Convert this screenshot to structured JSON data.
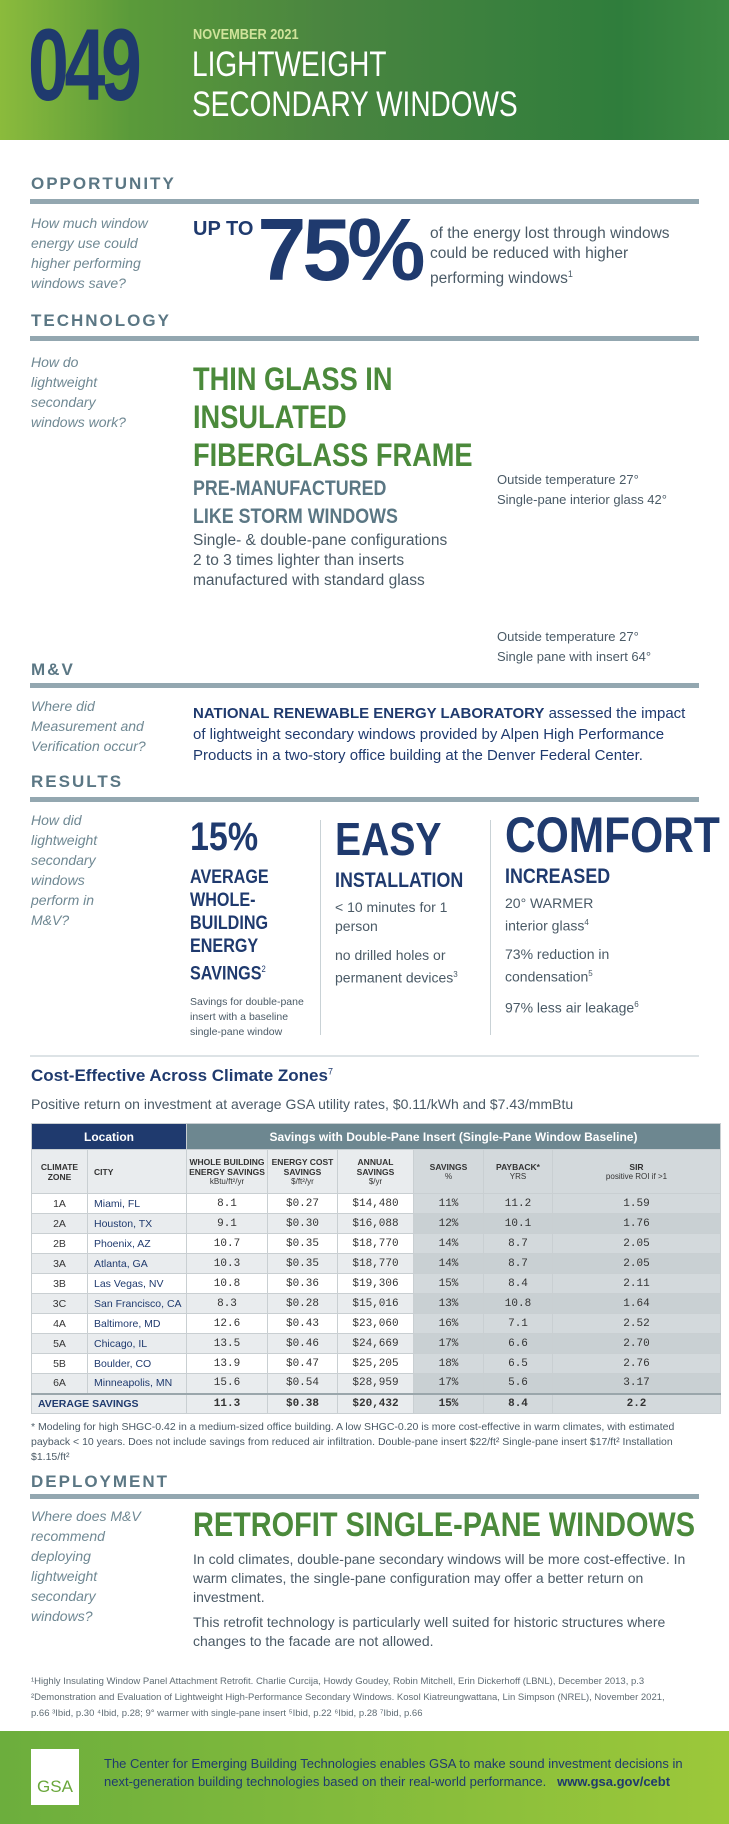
{
  "header": {
    "number": "049",
    "date": "NOVEMBER 2021",
    "title_line1": "LIGHTWEIGHT",
    "title_line2": "SECONDARY WINDOWS"
  },
  "opportunity": {
    "heading": "OPPORTUNITY",
    "question": "How much window energy use could higher performing windows save?",
    "prefix": "UP TO",
    "value": "75%",
    "text": "of the energy lost through windows could be reduced with higher performing windows",
    "ref": "1"
  },
  "technology": {
    "heading": "TECHNOLOGY",
    "question": "How do lightweight secondary windows work?",
    "title_lines": [
      "THIN GLASS IN",
      "INSULATED",
      "FIBERGLASS FRAME"
    ],
    "subtitle_lines": [
      "PRE-MANUFACTURED",
      "LIKE STORM WINDOWS"
    ],
    "desc_lines": [
      "Single- & double-pane configurations",
      "2 to 3 times lighter than inserts",
      "manufactured with standard glass"
    ],
    "images": [
      {
        "caption1": "Outside temperature 27°",
        "caption2": "Single-pane interior glass 42°"
      },
      {
        "caption1": "Outside temperature 27°",
        "caption2": "Single pane with insert 64°"
      }
    ]
  },
  "mv": {
    "heading": "M&V",
    "question": "Where did Measurement and Verification occur?",
    "lead": "NATIONAL RENEWABLE ENERGY LABORATORY",
    "text": " assessed the impact of lightweight secondary windows provided by Alpen High Performance Products in a two-story office building at the Denver Federal Center."
  },
  "results": {
    "heading": "RESULTS",
    "question": "How did lightweight secondary windows perform in M&V?",
    "col1": {
      "big": "15%",
      "label_lines": [
        "AVERAGE",
        "WHOLE-",
        "BUILDING",
        "ENERGY",
        "SAVINGS"
      ],
      "ref": "2",
      "note": "Savings for double-pane insert with a baseline single-pane window"
    },
    "col2": {
      "big": "EASY",
      "label": "INSTALLATION",
      "line1": "< 10 minutes for 1 person",
      "line2": "no drilled holes or permanent devices",
      "ref2": "3"
    },
    "col3": {
      "big": "COMFORT",
      "label": "INCREASED",
      "line1": "20° WARMER interior glass",
      "ref1": "4",
      "line2": "73% reduction in condensation",
      "ref2": "5",
      "line3": "97% less air leakage",
      "ref3": "6"
    }
  },
  "cost": {
    "title": "Cost-Effective Across Climate Zones",
    "ref": "7",
    "subtitle": "Positive return on investment at average GSA utility rates, $0.11/kWh and $7.43/mmBtu"
  },
  "table": {
    "group1": "Location",
    "group2": "Savings with Double-Pane Insert (Single-Pane Window Baseline)",
    "headers": [
      {
        "l1": "CLIMATE ZONE",
        "l2": ""
      },
      {
        "l1": "CITY",
        "l2": ""
      },
      {
        "l1": "WHOLE BUILDING ENERGY SAVINGS",
        "l2": "kBtu/ft²/yr"
      },
      {
        "l1": "ENERGY COST SAVINGS",
        "l2": "$/ft²/yr"
      },
      {
        "l1": "ANNUAL SAVINGS",
        "l2": "$/yr"
      },
      {
        "l1": "SAVINGS",
        "l2": "%"
      },
      {
        "l1": "PAYBACK*",
        "l2": "YRS"
      },
      {
        "l1": "SIR",
        "l2": "positive ROI if >1"
      }
    ],
    "rows": [
      [
        "1A",
        "Miami, FL",
        "8.1",
        "$0.27",
        "$14,480",
        "11%",
        "11.2",
        "1.59"
      ],
      [
        "2A",
        "Houston, TX",
        "9.1",
        "$0.30",
        "$16,088",
        "12%",
        "10.1",
        "1.76"
      ],
      [
        "2B",
        "Phoenix, AZ",
        "10.7",
        "$0.35",
        "$18,770",
        "14%",
        "8.7",
        "2.05"
      ],
      [
        "3A",
        "Atlanta, GA",
        "10.3",
        "$0.35",
        "$18,770",
        "14%",
        "8.7",
        "2.05"
      ],
      [
        "3B",
        "Las Vegas, NV",
        "10.8",
        "$0.36",
        "$19,306",
        "15%",
        "8.4",
        "2.11"
      ],
      [
        "3C",
        "San Francisco, CA",
        "8.3",
        "$0.28",
        "$15,016",
        "13%",
        "10.8",
        "1.64"
      ],
      [
        "4A",
        "Baltimore, MD",
        "12.6",
        "$0.43",
        "$23,060",
        "16%",
        "7.1",
        "2.52"
      ],
      [
        "5A",
        "Chicago, IL",
        "13.5",
        "$0.46",
        "$24,669",
        "17%",
        "6.6",
        "2.70"
      ],
      [
        "5B",
        "Boulder, CO",
        "13.9",
        "$0.47",
        "$25,205",
        "18%",
        "6.5",
        "2.76"
      ],
      [
        "6A",
        "Minneapolis, MN",
        "15.6",
        "$0.54",
        "$28,959",
        "17%",
        "5.6",
        "3.17"
      ]
    ],
    "average": [
      "AVERAGE SAVINGS",
      "11.3",
      "$0.38",
      "$20,432",
      "15%",
      "8.4",
      "2.2"
    ],
    "footnote": "* Modeling for high SHGC-0.42 in a medium-sized office building. A low SHGC-0.20 is more cost-effective in warm climates, with estimated payback < 10 years. Does not include savings from reduced air infiltration. Double-pane insert $22/ft²  Single-pane insert $17/ft²  Installation $1.15/ft²"
  },
  "deployment": {
    "heading": "DEPLOYMENT",
    "question": "Where does M&V recommend deploying lightweight secondary windows?",
    "title": "RETROFIT SINGLE-PANE WINDOWS",
    "p1": "In cold climates, double-pane secondary windows will be more cost-effective. In warm climates, the single-pane configuration may offer a better return on investment.",
    "p2": "This retrofit technology is particularly well suited for historic structures where changes to the facade are not allowed."
  },
  "references": "¹Highly Insulating Window Panel Attachment Retrofit. Charlie Curcija, Howdy Goudey, Robin Mitchell, Erin Dickerhoff (LBNL), December 2013, p.3   ²Demonstration and Evaluation of Lightweight High-Performance Secondary Windows. Kosol Kiatreungwattana, Lin Simpson (NREL), November 2021, p.66    ³Ibid, p.30   ⁴Ibid, p.28; 9° warmer with single-pane insert   ⁵Ibid, p.22   ⁶Ibid, p.28   ⁷Ibid, p.66",
  "footer": {
    "logo": "GSA",
    "text": "The Center for Emerging Building Technologies enables GSA to make sound investment decisions in next-generation building technologies based on their real-world performance.",
    "url": "www.gsa.gov/cebt"
  },
  "colors": {
    "navy": "#1f3a6e",
    "green": "#4b8a3b",
    "slate": "#5b7784",
    "footer_green": "#8cc13c"
  }
}
